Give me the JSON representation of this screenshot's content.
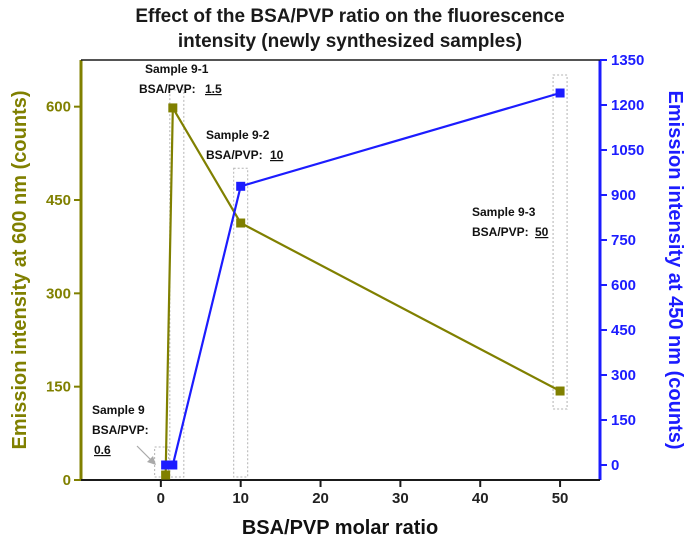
{
  "chart_data": {
    "type": "line",
    "title_lines": [
      "Effect of the BSA/PVP ratio on the fluorescence",
      "intensity (newly synthesized samples)"
    ],
    "xlabel": "BSA/PVP molar ratio",
    "ylabel_left": "Emission intensity at 600 nm (counts)",
    "ylabel_right": "Emission intensity at 450 nm (counts)",
    "xlim": [
      -10,
      55
    ],
    "ylim_left": [
      0,
      675
    ],
    "ylim_right": [
      -50,
      1350
    ],
    "x_ticks": [
      0,
      10,
      20,
      30,
      40,
      50
    ],
    "y_left_ticks": [
      0,
      150,
      300,
      450,
      600
    ],
    "y_right_ticks": [
      0,
      150,
      300,
      450,
      600,
      750,
      900,
      1050,
      1200,
      1350
    ],
    "series": [
      {
        "name": "Emission 600 nm",
        "axis": "left",
        "color": "#808000",
        "x": [
          0.6,
          1.5,
          10,
          50
        ],
        "values": [
          8,
          598,
          413,
          143
        ]
      },
      {
        "name": "Emission 450 nm",
        "axis": "right",
        "color": "#1c1cff",
        "x": [
          0.6,
          1.5,
          10,
          50
        ],
        "values": [
          0,
          0,
          929,
          1240
        ]
      }
    ],
    "annotations": [
      {
        "name": "Sample 9",
        "label": "Sample 9",
        "ratio_label": "BSA/PVP:",
        "ratio_value": "0.6",
        "x": 0.6
      },
      {
        "name": "Sample 9-1",
        "label": "Sample 9-1",
        "ratio_label": "BSA/PVP:",
        "ratio_value": "1.5",
        "x": 1.5
      },
      {
        "name": "Sample 9-2",
        "label": "Sample 9-2",
        "ratio_label": "BSA/PVP:",
        "ratio_value": "10",
        "x": 10
      },
      {
        "name": "Sample 9-3",
        "label": "Sample 9-3",
        "ratio_label": "BSA/PVP:",
        "ratio_value": "50",
        "x": 50
      }
    ]
  }
}
